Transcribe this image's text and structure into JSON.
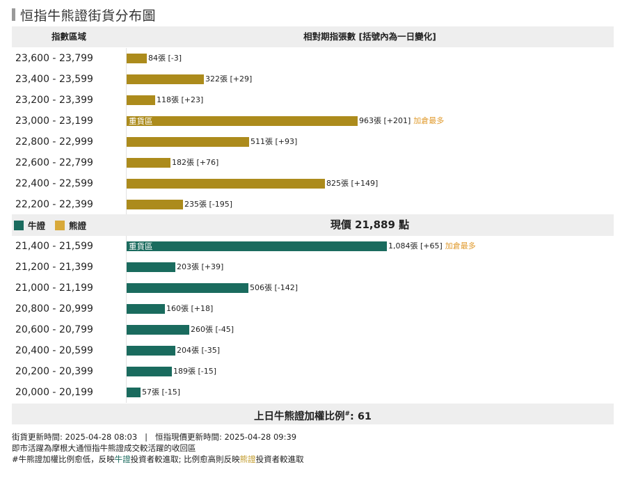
{
  "title": "恒指牛熊證街貨分布圖",
  "header": {
    "range_label": "指數區域",
    "count_label": "相對期指張數 [括號內為一日變化]"
  },
  "legend": {
    "bull": "牛證",
    "bear": "熊證"
  },
  "current_price": "現價 21,889 點",
  "ratio_label": "上日牛熊證加權比例",
  "ratio_marker": "#",
  "ratio_value": ": 61",
  "colors": {
    "bull": "#1a6b5e",
    "bear": "#ac8b1c",
    "note": "#e09a2c"
  },
  "notes": {
    "update_line": "街貨更新時間: 2025-04-28 08:03   |   恒指現價更新時間: 2025-04-28 09:39",
    "line2": "即市活躍為摩根大通恒指牛熊證成交較活躍的收回區",
    "line3_a": "#牛熊證加權比例愈低，反映",
    "line3_bull": "牛證",
    "line3_b": "投資者較進取; 比例愈高則反映",
    "line3_bear": "熊證",
    "line3_c": "投資者較進取"
  },
  "chart_data": {
    "type": "bar",
    "orientation": "horizontal",
    "title": "恒指牛熊證街貨分布圖",
    "xlabel": "相對期指張數 [括號內為一日變化]",
    "ylabel": "指數區域",
    "xlim": [
      0,
      1084
    ],
    "bear": [
      {
        "range": "23,600 - 23,799",
        "value": 84,
        "label": "84張 [-3]",
        "inner": "",
        "note": ""
      },
      {
        "range": "23,400 - 23,599",
        "value": 322,
        "label": "322張 [+29]",
        "inner": "",
        "note": ""
      },
      {
        "range": "23,200 - 23,399",
        "value": 118,
        "label": "118張 [+23]",
        "inner": "",
        "note": ""
      },
      {
        "range": "23,000 - 23,199",
        "value": 963,
        "label": "963張 [+201]",
        "inner": "重貨區",
        "note": "加倉最多"
      },
      {
        "range": "22,800 - 22,999",
        "value": 511,
        "label": "511張 [+93]",
        "inner": "",
        "note": ""
      },
      {
        "range": "22,600 - 22,799",
        "value": 182,
        "label": "182張 [+76]",
        "inner": "",
        "note": ""
      },
      {
        "range": "22,400 - 22,599",
        "value": 825,
        "label": "825張 [+149]",
        "inner": "",
        "note": ""
      },
      {
        "range": "22,200 - 22,399",
        "value": 235,
        "label": "235張 [-195]",
        "inner": "",
        "note": ""
      }
    ],
    "bull": [
      {
        "range": "21,400 - 21,599",
        "value": 1084,
        "label": "1,084張 [+65]",
        "inner": "重貨區",
        "note": "加倉最多"
      },
      {
        "range": "21,200 - 21,399",
        "value": 203,
        "label": "203張 [+39]",
        "inner": "",
        "note": ""
      },
      {
        "range": "21,000 - 21,199",
        "value": 506,
        "label": "506張 [-142]",
        "inner": "",
        "note": ""
      },
      {
        "range": "20,800 - 20,999",
        "value": 160,
        "label": "160張 [+18]",
        "inner": "",
        "note": ""
      },
      {
        "range": "20,600 - 20,799",
        "value": 260,
        "label": "260張 [-45]",
        "inner": "",
        "note": ""
      },
      {
        "range": "20,400 - 20,599",
        "value": 204,
        "label": "204張 [-35]",
        "inner": "",
        "note": ""
      },
      {
        "range": "20,200 - 20,399",
        "value": 189,
        "label": "189張 [-15]",
        "inner": "",
        "note": ""
      },
      {
        "range": "20,000 - 20,199",
        "value": 57,
        "label": "57張 [-15]",
        "inner": "",
        "note": ""
      }
    ]
  }
}
